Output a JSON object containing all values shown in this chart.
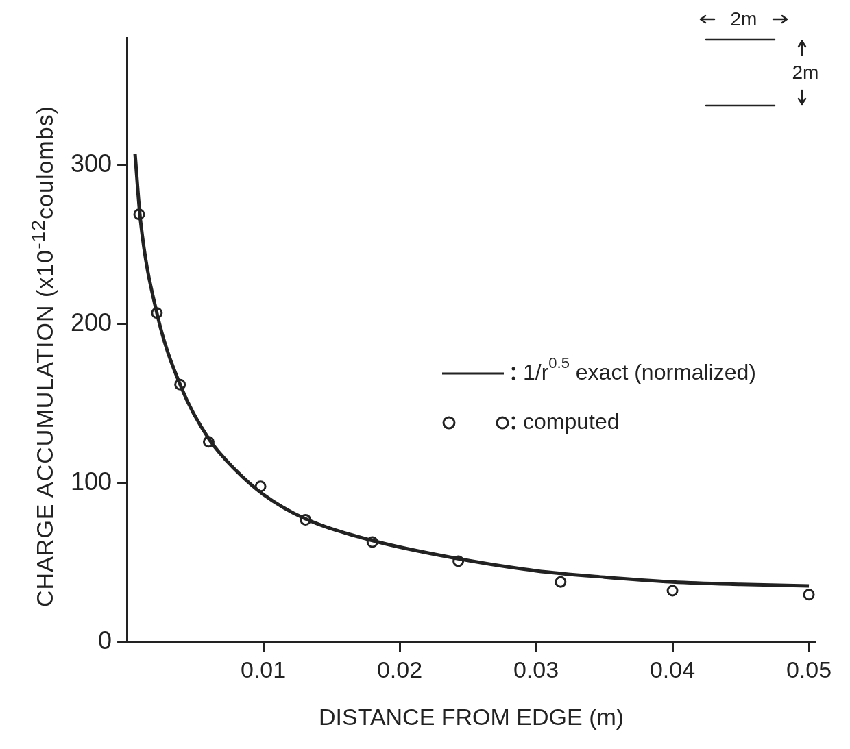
{
  "chart_data": {
    "type": "line",
    "xlabel": "DISTANCE FROM EDGE (m)",
    "ylabel": "CHARGE ACCUMULATION (x10$^{-12}$coulombs)",
    "xlim": [
      0,
      0.0505
    ],
    "xticks": [
      0.01,
      0.02,
      0.03,
      0.04,
      0.05
    ],
    "ylim": [
      0,
      380
    ],
    "yticks": [
      0,
      100,
      200,
      300
    ],
    "grid": false,
    "legend": "right",
    "series": [
      {
        "name": "1/r$^{0.5}$ exact (normalized)",
        "type": "line",
        "color": "#222222",
        "marker": "none",
        "x": [
          0.0006,
          0.001,
          0.0022,
          0.004,
          0.006,
          0.008,
          0.01,
          0.013,
          0.018,
          0.024,
          0.03,
          0.035,
          0.04,
          0.045,
          0.05
        ],
        "values": [
          307,
          265,
          207,
          160,
          128,
          108,
          93,
          78,
          64,
          53,
          45,
          41,
          38,
          36.5,
          35.5
        ]
      },
      {
        "name": "computed",
        "type": "scatter",
        "color": "#222222",
        "marker": "circle",
        "x": [
          0.0009,
          0.0022,
          0.0039,
          0.006,
          0.0098,
          0.0131,
          0.018,
          0.0243,
          0.0318,
          0.04,
          0.05
        ],
        "values": [
          269,
          207,
          162,
          126,
          98,
          77,
          63,
          51,
          38,
          32.5,
          30
        ]
      }
    ],
    "annotations": [
      "2m",
      "2m"
    ]
  }
}
